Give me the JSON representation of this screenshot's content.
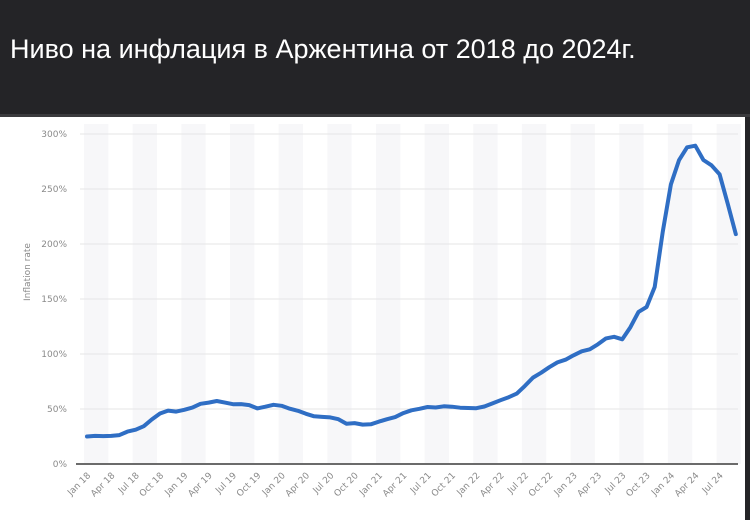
{
  "header": {
    "title": "Ниво на инфлация в Аржентина от 2018 до 2024г."
  },
  "colors": {
    "background_dark": "#242427",
    "line": "#2f6ec4",
    "grid": "#e6e6e6",
    "band": "#f7f7f9",
    "axis": "#6b6b6b",
    "tick_text": "#8a8a8a"
  },
  "chart_data": {
    "type": "line",
    "title": "Ниво на инфлация в Аржентина от 2018 до 2024г.",
    "xlabel": "",
    "ylabel": "Inflation rate",
    "ylim": [
      0,
      300
    ],
    "yticks": [
      "0%",
      "50%",
      "100%",
      "150%",
      "200%",
      "250%",
      "300%"
    ],
    "ytick_values": [
      0,
      50,
      100,
      150,
      200,
      250,
      300
    ],
    "xtick_labels": [
      "Jan 18",
      "Apr 18",
      "Jul 18",
      "Oct 18",
      "Jan 19",
      "Apr 19",
      "Jul 19",
      "Oct 19",
      "Jan 20",
      "Apr 20",
      "Jul 20",
      "Oct 20",
      "Jan 21",
      "Apr 21",
      "Jul 21",
      "Oct 21",
      "Jan 22",
      "Apr 22",
      "Jul 22",
      "Oct 22",
      "Jan 23",
      "Apr 23",
      "Jul 23",
      "Oct 23",
      "Jan 24",
      "Apr 24",
      "Jul 24"
    ],
    "grid": true,
    "legend": null,
    "series": [
      {
        "name": "Inflation rate",
        "x": [
          "Jan 18",
          "Feb 18",
          "Mar 18",
          "Apr 18",
          "May 18",
          "Jun 18",
          "Jul 18",
          "Aug 18",
          "Sep 18",
          "Oct 18",
          "Nov 18",
          "Dec 18",
          "Jan 19",
          "Feb 19",
          "Mar 19",
          "Apr 19",
          "May 19",
          "Jun 19",
          "Jul 19",
          "Aug 19",
          "Sep 19",
          "Oct 19",
          "Nov 19",
          "Dec 19",
          "Jan 20",
          "Feb 20",
          "Mar 20",
          "Apr 20",
          "May 20",
          "Jun 20",
          "Jul 20",
          "Aug 20",
          "Sep 20",
          "Oct 20",
          "Nov 20",
          "Dec 20",
          "Jan 21",
          "Feb 21",
          "Mar 21",
          "Apr 21",
          "May 21",
          "Jun 21",
          "Jul 21",
          "Aug 21",
          "Sep 21",
          "Oct 21",
          "Nov 21",
          "Dec 21",
          "Jan 22",
          "Feb 22",
          "Mar 22",
          "Apr 22",
          "May 22",
          "Jun 22",
          "Jul 22",
          "Aug 22",
          "Sep 22",
          "Oct 22",
          "Nov 22",
          "Dec 22",
          "Jan 23",
          "Feb 23",
          "Mar 23",
          "Apr 23",
          "May 23",
          "Jun 23",
          "Jul 23",
          "Aug 23",
          "Sep 23",
          "Oct 23",
          "Nov 23",
          "Dec 23",
          "Jan 24",
          "Feb 24",
          "Mar 24",
          "Apr 24",
          "May 24",
          "Jun 24",
          "Jul 24",
          "Aug 24",
          "Sep 24"
        ],
        "values": [
          25,
          25.5,
          25.4,
          25.5,
          26.3,
          29.5,
          31.2,
          34.4,
          40.5,
          45.9,
          48.5,
          47.6,
          49.3,
          51.3,
          54.7,
          55.8,
          57.3,
          55.8,
          54.4,
          54.5,
          53.5,
          50.5,
          52.1,
          53.8,
          52.9,
          50.3,
          48.4,
          45.6,
          43.4,
          42.8,
          42.4,
          40.7,
          36.6,
          37.2,
          35.8,
          36.1,
          38.5,
          40.7,
          42.6,
          46.3,
          48.8,
          50.2,
          51.8,
          51.4,
          52.5,
          52.1,
          51.2,
          50.9,
          50.7,
          52.3,
          55.1,
          58.0,
          60.7,
          64.0,
          71.0,
          78.5,
          83.0,
          88.0,
          92.4,
          94.8,
          98.8,
          102.5,
          104.3,
          108.8,
          114.2,
          115.6,
          113.4,
          124.4,
          138.3,
          142.7,
          160.9,
          211.4,
          254.2,
          276.2,
          287.9,
          289.4,
          276.4,
          271.5,
          263.4,
          236.7,
          209.0
        ]
      }
    ]
  }
}
